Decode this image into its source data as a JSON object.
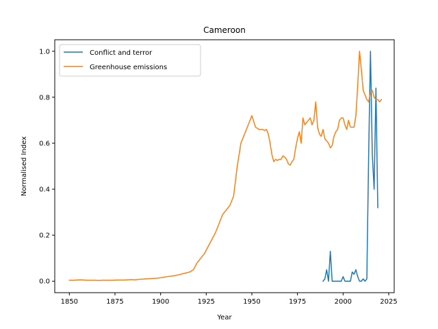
{
  "chart_data": {
    "type": "line",
    "title": "Cameroon",
    "xlabel": "Year",
    "ylabel": "Normalised Index",
    "xlim": [
      1842,
      2028
    ],
    "ylim": [
      -0.05,
      1.05
    ],
    "xticks": [
      1850,
      1875,
      1900,
      1925,
      1950,
      1975,
      2000,
      2025
    ],
    "yticks": [
      0.0,
      0.2,
      0.4,
      0.6,
      0.8,
      1.0
    ],
    "grid": false,
    "legend_position": "upper-left",
    "series": [
      {
        "name": "Conflict and terror",
        "color": "#1f77b4",
        "x": [
          1989,
          1990,
          1991,
          1992,
          1993,
          1994,
          1995,
          1996,
          1997,
          1998,
          1999,
          2000,
          2001,
          2002,
          2003,
          2004,
          2005,
          2006,
          2007,
          2008,
          2009,
          2010,
          2011,
          2012,
          2013,
          2014,
          2015,
          2016,
          2017,
          2018,
          2019
        ],
        "y": [
          0.0,
          0.01,
          0.05,
          0.0,
          0.13,
          0.0,
          0.0,
          0.0,
          0.0,
          0.0,
          0.0,
          0.02,
          0.0,
          0.0,
          0.0,
          0.0,
          0.04,
          0.03,
          0.05,
          0.02,
          0.0,
          0.0,
          0.01,
          0.0,
          0.01,
          0.55,
          1.0,
          0.55,
          0.4,
          0.84,
          0.32
        ]
      },
      {
        "name": "Greenhouse emissions",
        "color": "#ff7f0e",
        "x": [
          1850,
          1852,
          1854,
          1856,
          1858,
          1860,
          1862,
          1864,
          1866,
          1868,
          1870,
          1872,
          1874,
          1876,
          1878,
          1880,
          1882,
          1884,
          1886,
          1888,
          1890,
          1892,
          1894,
          1896,
          1898,
          1900,
          1902,
          1904,
          1906,
          1908,
          1910,
          1912,
          1914,
          1916,
          1918,
          1920,
          1922,
          1924,
          1926,
          1928,
          1930,
          1932,
          1934,
          1936,
          1938,
          1940,
          1942,
          1944,
          1946,
          1948,
          1950,
          1952,
          1954,
          1956,
          1957,
          1958,
          1959,
          1960,
          1961,
          1962,
          1963,
          1964,
          1965,
          1966,
          1967,
          1968,
          1969,
          1970,
          1971,
          1972,
          1973,
          1974,
          1975,
          1976,
          1977,
          1978,
          1979,
          1980,
          1981,
          1982,
          1983,
          1984,
          1985,
          1986,
          1987,
          1988,
          1989,
          1990,
          1991,
          1992,
          1993,
          1994,
          1995,
          1996,
          1997,
          1998,
          1999,
          2000,
          2001,
          2002,
          2003,
          2004,
          2005,
          2006,
          2007,
          2008,
          2009,
          2010,
          2011,
          2012,
          2013,
          2014,
          2015,
          2016,
          2017,
          2018,
          2019,
          2020,
          2021
        ],
        "y": [
          0.004,
          0.004,
          0.005,
          0.006,
          0.005,
          0.004,
          0.004,
          0.004,
          0.003,
          0.004,
          0.004,
          0.004,
          0.004,
          0.005,
          0.005,
          0.005,
          0.006,
          0.007,
          0.006,
          0.008,
          0.009,
          0.01,
          0.011,
          0.012,
          0.013,
          0.015,
          0.018,
          0.02,
          0.022,
          0.025,
          0.028,
          0.032,
          0.036,
          0.04,
          0.05,
          0.08,
          0.1,
          0.12,
          0.15,
          0.18,
          0.21,
          0.25,
          0.29,
          0.31,
          0.33,
          0.37,
          0.5,
          0.6,
          0.64,
          0.68,
          0.72,
          0.67,
          0.66,
          0.66,
          0.655,
          0.66,
          0.64,
          0.6,
          0.55,
          0.52,
          0.53,
          0.525,
          0.53,
          0.53,
          0.545,
          0.54,
          0.53,
          0.51,
          0.505,
          0.52,
          0.53,
          0.58,
          0.62,
          0.65,
          0.6,
          0.71,
          0.68,
          0.69,
          0.7,
          0.71,
          0.68,
          0.7,
          0.78,
          0.67,
          0.64,
          0.63,
          0.66,
          0.62,
          0.61,
          0.6,
          0.58,
          0.59,
          0.63,
          0.65,
          0.66,
          0.7,
          0.71,
          0.71,
          0.68,
          0.66,
          0.7,
          0.67,
          0.67,
          0.67,
          0.72,
          0.85,
          1.0,
          0.92,
          0.83,
          0.81,
          0.79,
          0.78,
          0.82,
          0.83,
          0.8,
          0.79,
          0.79,
          0.78,
          0.79
        ]
      }
    ]
  }
}
